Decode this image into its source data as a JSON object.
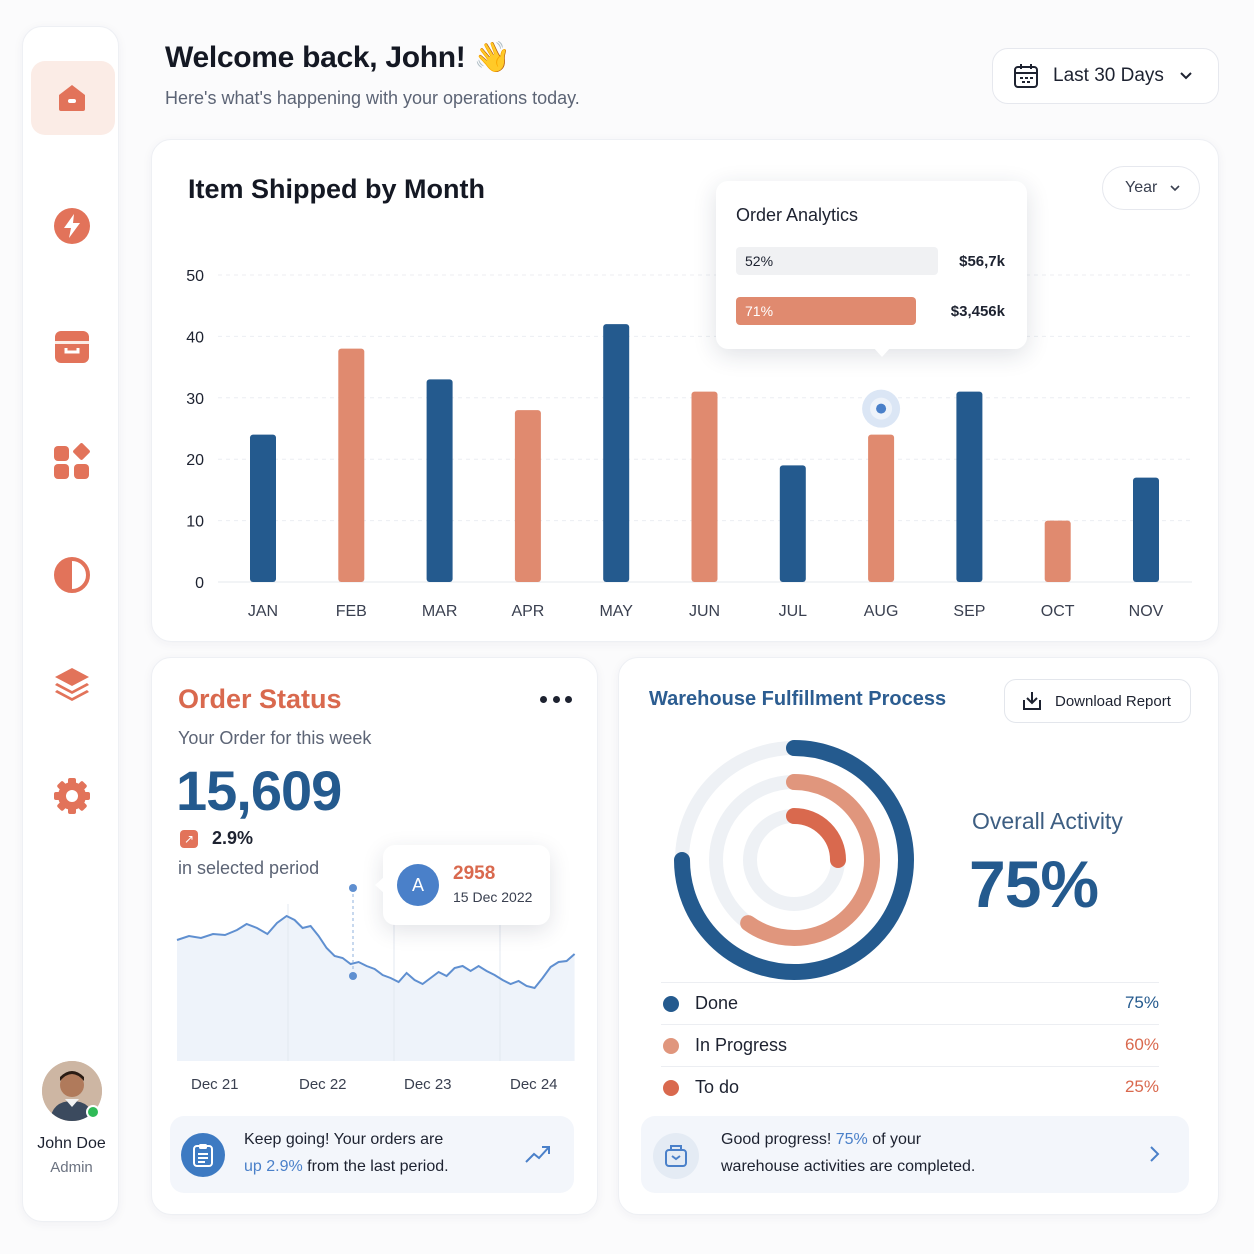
{
  "header": {
    "greeting": "Welcome back, John! 👋",
    "subtitle": "Here's what's happening with your operations today.",
    "range": "Last 30 Days"
  },
  "sidebar": {
    "items": [
      {
        "name": "home",
        "icon": "home-icon"
      },
      {
        "name": "activity",
        "icon": "lightning-icon"
      },
      {
        "name": "archive",
        "icon": "archive-box-icon"
      },
      {
        "name": "apps",
        "icon": "grid-icon"
      },
      {
        "name": "theme",
        "icon": "contrast-icon"
      },
      {
        "name": "layers",
        "icon": "layers-icon"
      },
      {
        "name": "settings",
        "icon": "gear-icon"
      }
    ],
    "user": {
      "name": "John Doe",
      "role": "Admin",
      "status": "online"
    }
  },
  "shipped_chart": {
    "title": "Item Shipped by Month",
    "period_select": "Year",
    "tooltip": {
      "title": "Order Analytics",
      "rows": [
        {
          "pct": "52%",
          "value": "$56,7k",
          "fill": 0.52
        },
        {
          "pct": "71%",
          "value": "$3,456k",
          "fill": 0.71
        }
      ]
    }
  },
  "chart_data": {
    "type": "bar",
    "categories": [
      "JAN",
      "FEB",
      "MAR",
      "APR",
      "MAY",
      "JUN",
      "JUL",
      "AUG",
      "SEP",
      "OCT",
      "NOV"
    ],
    "values": [
      24,
      38,
      33,
      28,
      42,
      31,
      19,
      24,
      31,
      10,
      17
    ],
    "bar_colors": [
      "#245a8e",
      "#e08a6f",
      "#245a8e",
      "#e08a6f",
      "#245a8e",
      "#e08a6f",
      "#245a8e",
      "#e08a6f",
      "#245a8e",
      "#e08a6f",
      "#245a8e"
    ],
    "ylim": [
      0,
      50
    ],
    "yticks": [
      0,
      10,
      20,
      30,
      40,
      50
    ],
    "grid": true,
    "highlight_category": "AUG"
  },
  "order_status": {
    "title": "Order Status",
    "subtitle": "Your Order for this week",
    "count": "15,609",
    "trend": "2.9%",
    "trend_note": "in selected period",
    "popover": {
      "avatar": "A",
      "value": "2958",
      "date": "15 Dec 2022"
    },
    "x_labels": [
      "Dec 21",
      "Dec 22",
      "Dec 23",
      "Dec 24"
    ],
    "footer": {
      "line1": "Keep going! Your orders are",
      "highlight": "up 2.9%",
      "line2_rest": " from the last period."
    }
  },
  "warehouse": {
    "title": "Warehouse Fulfillment Process",
    "download": "Download Report",
    "overall_label": "Overall Activity",
    "overall_value": "75%",
    "legend": [
      {
        "name": "Done",
        "value": "75%",
        "fraction": 0.75,
        "color": "#245a8e",
        "text_color": "#245a8e"
      },
      {
        "name": "In Progress",
        "value": "60%",
        "fraction": 0.6,
        "color": "#e0967d",
        "text_color": "#d9694e"
      },
      {
        "name": "To do",
        "value": "25%",
        "fraction": 0.25,
        "color": "#d9694e",
        "text_color": "#d9694e"
      }
    ],
    "footer": {
      "prefix": "Good progress! ",
      "highlight": "75%",
      "suffix": " of your",
      "line2": "warehouse activities are completed."
    }
  },
  "colors": {
    "accent": "#d9694e",
    "primary": "#245a8e",
    "bar_alt": "#e08a6f"
  }
}
